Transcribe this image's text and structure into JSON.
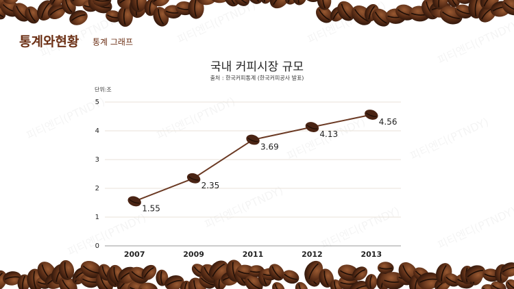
{
  "header": {
    "title": "통계와현황",
    "subtitle": "통계 그래프"
  },
  "watermark": "피티엔디(PTNDY)",
  "chart_data": {
    "type": "line",
    "title": "국내 커피시장 규모",
    "subtitle": "출처 : 한국커피통계 (한국커피공사 발표)",
    "unit_label": "단위:조",
    "categories": [
      "2007",
      "2009",
      "2011",
      "2012",
      "2013"
    ],
    "values": [
      1.55,
      2.35,
      3.69,
      4.13,
      4.56
    ],
    "color": "#6b3a24",
    "marker_color": "#4a2414",
    "ylim": [
      0,
      5
    ],
    "yticks": [
      0,
      1,
      2,
      3,
      4,
      5
    ],
    "grid": true
  }
}
